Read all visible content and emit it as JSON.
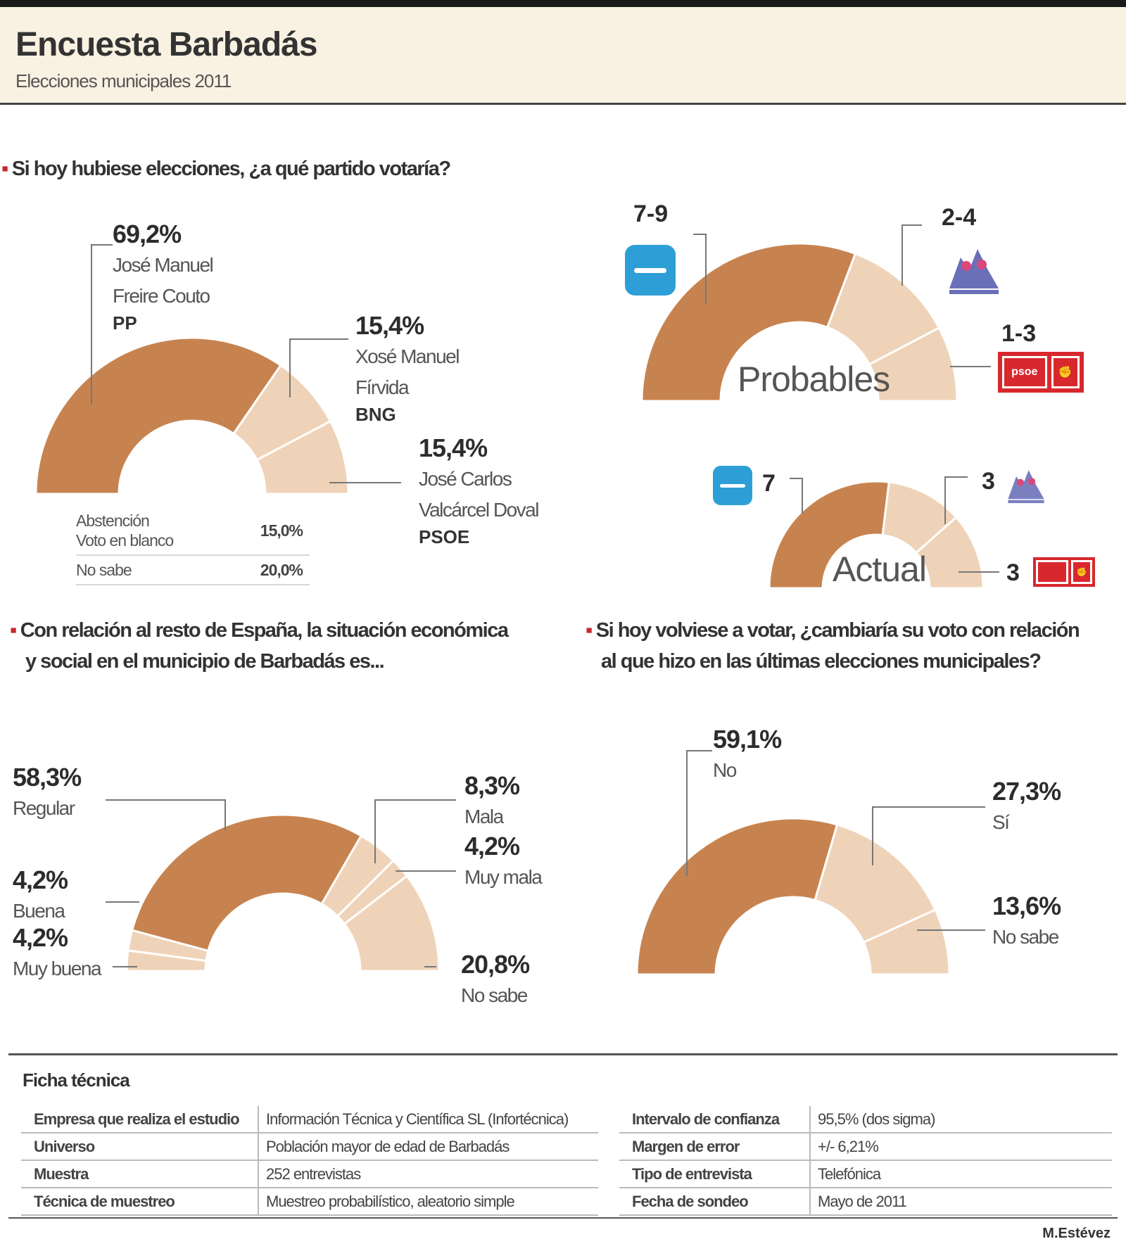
{
  "header": {
    "title": "Encuesta Barbadás",
    "subtitle": "Elecciones municipales 2011"
  },
  "colors": {
    "dark": "#c7834f",
    "light": "#efd3b8",
    "pp": "#2e9fd6",
    "psoe": "#d8282e",
    "bng": "#6a6fb8"
  },
  "questions": {
    "q1": "Si hoy hubiese elecciones, ¿a qué partido votaría?",
    "q2_line1": "Con relación al resto de España, la situación económica",
    "q2_line2": "y social en el municipio de Barbadás es...",
    "q3_line1": "Si hoy volviese a votar, ¿cambiaría su voto con relación",
    "q3_line2": "al que hizo en las últimas elecciones municipales?"
  },
  "seats": {
    "probables_label": "Probables",
    "actual_label": "Actual",
    "pp_probable": "7-9",
    "bng_probable": "2-4",
    "psoe_probable": "1-3",
    "pp_actual": "7",
    "bng_actual": "3",
    "psoe_actual": "3",
    "psoe_logo_text": "psoe"
  },
  "mini_table": [
    {
      "label_line1": "Abstención",
      "label_line2": "Voto en blanco",
      "value": "15,0%"
    },
    {
      "label_line1": "No sabe",
      "label_line2": "",
      "value": "20,0%"
    }
  ],
  "chart_data": [
    {
      "type": "pie",
      "title": "Si hoy hubiese elecciones, ¿a qué partido votaría?",
      "categories": [
        "PP",
        "BNG",
        "PSOE"
      ],
      "values": [
        69.2,
        15.4,
        15.4
      ],
      "labels": [
        {
          "pct": "69,2%",
          "line1": "José Manuel",
          "line2": "Freire Couto",
          "party": "PP"
        },
        {
          "pct": "15,4%",
          "line1": "Xosé Manuel",
          "line2": "Fírvida",
          "party": "BNG"
        },
        {
          "pct": "15,4%",
          "line1": "José Carlos",
          "line2": "Valcárcel Doval",
          "party": "PSOE"
        }
      ]
    },
    {
      "type": "pie",
      "title": "Probables",
      "categories": [
        "PP",
        "BNG",
        "PSOE"
      ],
      "values": [
        8,
        3,
        2
      ]
    },
    {
      "type": "pie",
      "title": "Actual",
      "categories": [
        "PP",
        "BNG",
        "PSOE"
      ],
      "values": [
        7,
        3,
        3
      ]
    },
    {
      "type": "pie",
      "title": "Con relación al resto de España, la situación económica y social en el municipio de Barbadás es...",
      "categories": [
        "Muy buena",
        "Buena",
        "Regular",
        "Mala",
        "Muy mala",
        "No sabe"
      ],
      "values": [
        4.2,
        4.2,
        58.3,
        8.3,
        4.2,
        20.8
      ],
      "labels": [
        {
          "pct": "4,2%",
          "name": "Muy buena"
        },
        {
          "pct": "4,2%",
          "name": "Buena"
        },
        {
          "pct": "58,3%",
          "name": "Regular"
        },
        {
          "pct": "8,3%",
          "name": "Mala"
        },
        {
          "pct": "4,2%",
          "name": "Muy mala"
        },
        {
          "pct": "20,8%",
          "name": "No sabe"
        }
      ]
    },
    {
      "type": "pie",
      "title": "Si hoy volviese a votar, ¿cambiaría su voto con relación al que hizo en las últimas elecciones municipales?",
      "categories": [
        "No",
        "Sí",
        "No sabe"
      ],
      "values": [
        59.1,
        27.3,
        13.6
      ],
      "labels": [
        {
          "pct": "59,1%",
          "name": "No"
        },
        {
          "pct": "27,3%",
          "name": "Sí"
        },
        {
          "pct": "13,6%",
          "name": "No sabe"
        }
      ]
    }
  ],
  "ficha": {
    "title": "Ficha técnica",
    "left": [
      {
        "k": "Empresa que realiza el estudio",
        "v": "Información Técnica y Científica SL (Infortécnica)"
      },
      {
        "k": "Universo",
        "v": "Población mayor de edad de Barbadás"
      },
      {
        "k": "Muestra",
        "v": "252 entrevistas"
      },
      {
        "k": "Técnica de muestreo",
        "v": "Muestreo probabilístico, aleatorio simple"
      }
    ],
    "right": [
      {
        "k": "Intervalo de confianza",
        "v": "95,5% (dos sigma)"
      },
      {
        "k": "Margen de error",
        "v": "+/- 6,21%"
      },
      {
        "k": "Tipo de entrevista",
        "v": "Telefónica"
      },
      {
        "k": "Fecha de sondeo",
        "v": "Mayo de 2011"
      }
    ],
    "author": "M.Estévez"
  }
}
